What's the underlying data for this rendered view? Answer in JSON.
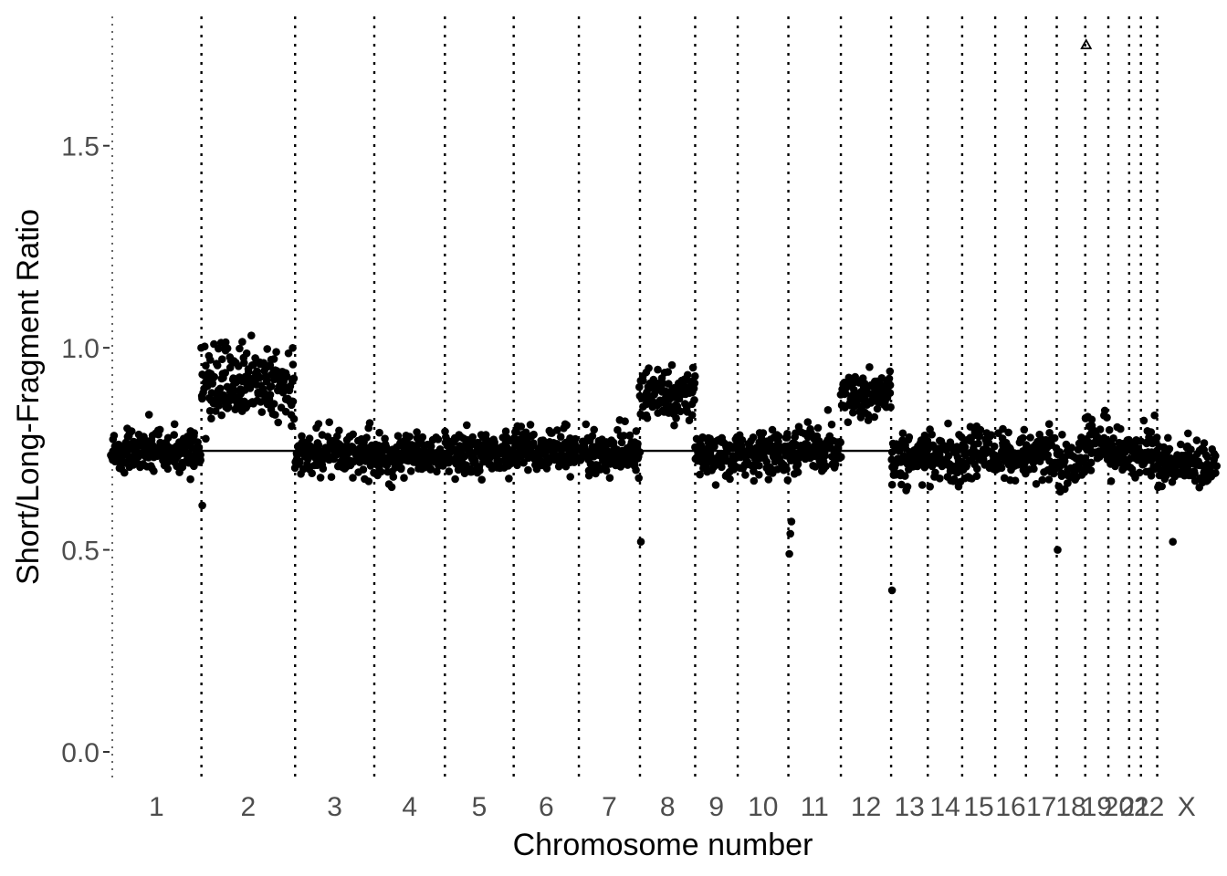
{
  "chart_data": {
    "type": "scatter",
    "title": "",
    "xlabel": "Chromosome number",
    "ylabel": "Short/Long-Fragment Ratio",
    "ylim": [
      -0.07,
      1.82
    ],
    "yticks": [
      0.0,
      0.5,
      1.0,
      1.5
    ],
    "ytick_labels": [
      "0.0",
      "0.5",
      "1.0",
      "1.5"
    ],
    "grid": false,
    "legend": "none",
    "point_color": "#000000",
    "outlier_marker": "open-triangle",
    "chromosome_order": [
      "1",
      "2",
      "3",
      "4",
      "5",
      "6",
      "7",
      "8",
      "9",
      "10",
      "11",
      "12",
      "13",
      "14",
      "15",
      "16",
      "17",
      "18",
      "19",
      "20",
      "21",
      "22",
      "X"
    ],
    "chromosome_bin_counts": [
      199,
      207,
      175,
      156,
      152,
      144,
      135,
      122,
      94,
      112,
      116,
      111,
      81,
      76,
      73,
      68,
      68,
      63,
      51,
      46,
      26,
      36,
      130
    ],
    "segments": [
      {
        "chromosome": "1",
        "mean": 0.745,
        "sd": 0.028
      },
      {
        "chromosome": "2",
        "mean": 0.91,
        "sd": 0.045
      },
      {
        "chromosome": "3",
        "mean": 0.74,
        "sd": 0.027
      },
      {
        "chromosome": "4",
        "mean": 0.735,
        "sd": 0.027
      },
      {
        "chromosome": "5",
        "mean": 0.74,
        "sd": 0.028
      },
      {
        "chromosome": "6",
        "mean": 0.745,
        "sd": 0.027
      },
      {
        "chromosome": "7",
        "mean": 0.74,
        "sd": 0.028
      },
      {
        "chromosome": "8",
        "mean": 0.88,
        "sd": 0.03
      },
      {
        "chromosome": "9",
        "mean": 0.735,
        "sd": 0.028
      },
      {
        "chromosome": "10",
        "mean": 0.74,
        "sd": 0.028
      },
      {
        "chromosome": "11",
        "mean": 0.75,
        "sd": 0.03
      },
      {
        "chromosome": "12",
        "mean": 0.89,
        "sd": 0.03
      },
      {
        "chromosome": "13",
        "mean": 0.73,
        "sd": 0.028
      },
      {
        "chromosome": "14",
        "mean": 0.735,
        "sd": 0.03
      },
      {
        "chromosome": "15",
        "mean": 0.74,
        "sd": 0.032
      },
      {
        "chromosome": "16",
        "mean": 0.73,
        "sd": 0.032
      },
      {
        "chromosome": "17",
        "mean": 0.74,
        "sd": 0.032
      },
      {
        "chromosome": "18",
        "mean": 0.72,
        "sd": 0.03
      },
      {
        "chromosome": "19",
        "mean": 0.77,
        "sd": 0.032
      },
      {
        "chromosome": "20",
        "mean": 0.74,
        "sd": 0.03
      },
      {
        "chromosome": "21",
        "mean": 0.735,
        "sd": 0.03
      },
      {
        "chromosome": "22",
        "mean": 0.75,
        "sd": 0.035
      },
      {
        "chromosome": "X",
        "mean": 0.71,
        "sd": 0.025
      }
    ],
    "reference_line": {
      "y": 0.745,
      "x_range_chromosomes": [
        "1",
        "13"
      ]
    },
    "outliers": [
      {
        "chromosome": "2",
        "position": 0.0,
        "y": 0.61
      },
      {
        "chromosome": "8",
        "position": 0.0,
        "y": 0.52
      },
      {
        "chromosome": "11",
        "position": 0.0,
        "y": 0.49
      },
      {
        "chromosome": "11",
        "position": 0.02,
        "y": 0.54
      },
      {
        "chromosome": "11",
        "position": 0.04,
        "y": 0.57
      },
      {
        "chromosome": "13",
        "position": 0.0,
        "y": 0.4
      },
      {
        "chromosome": "18",
        "position": 0.0,
        "y": 0.5
      },
      {
        "chromosome": "X",
        "position": 0.25,
        "y": 0.52
      }
    ],
    "capped_outliers": [
      {
        "chromosome": "19",
        "position": 0.0,
        "y": 1.75
      }
    ]
  }
}
